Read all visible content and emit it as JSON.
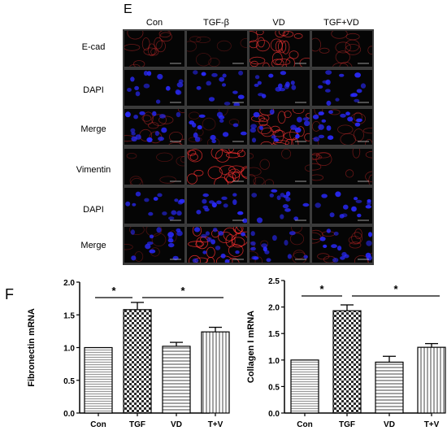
{
  "figure": {
    "panel_e_label": "E",
    "panel_f_label": "F",
    "columns": [
      "Con",
      "TGF-β",
      "VD",
      "TGF+VD"
    ],
    "rows": [
      "E-cad",
      "DAPI",
      "Merge",
      "Vimentin",
      "DAPI",
      "Merge"
    ],
    "colors": {
      "nuclei": "#2a2aff",
      "ecad": "#e03030",
      "vimentin": "#ff3030",
      "background": "#050505"
    }
  },
  "chart_data": [
    {
      "type": "bar",
      "categories": [
        "Con",
        "TGF",
        "VD",
        "T+V"
      ],
      "values": [
        1.0,
        1.58,
        1.02,
        1.24
      ],
      "errors": [
        0.0,
        0.11,
        0.06,
        0.07
      ],
      "ylabel": "Fibronectin mRNA",
      "ylim": [
        0,
        2.0
      ],
      "yticks": [
        "0.0",
        "0.5",
        "1.0",
        "1.5",
        "2.0"
      ],
      "significance": [
        {
          "from": "Con",
          "to": "TGF",
          "label": "*"
        },
        {
          "from": "TGF",
          "to": "T+V",
          "label": "*"
        }
      ]
    },
    {
      "type": "bar",
      "categories": [
        "Con",
        "TGF",
        "VD",
        "T+V"
      ],
      "values": [
        1.0,
        1.93,
        0.96,
        1.24
      ],
      "errors": [
        0.0,
        0.11,
        0.11,
        0.07
      ],
      "ylabel": "Collagen I mRNA",
      "ylim": [
        0,
        2.5
      ],
      "yticks": [
        "0.0",
        "0.5",
        "1.0",
        "1.5",
        "2.0",
        "2.5"
      ],
      "significance": [
        {
          "from": "Con",
          "to": "TGF",
          "label": "*"
        },
        {
          "from": "TGF",
          "to": "T+V",
          "label": "*"
        }
      ]
    }
  ]
}
